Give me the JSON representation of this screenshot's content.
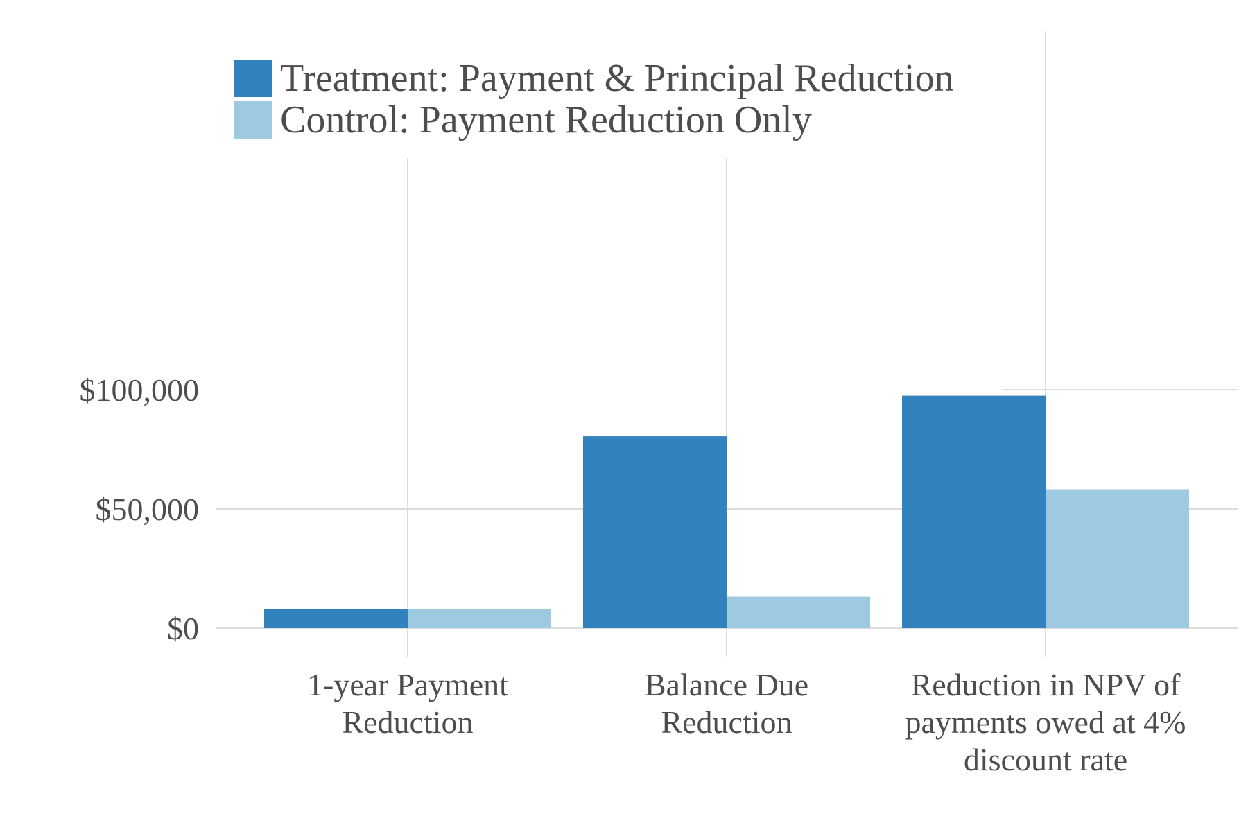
{
  "chart_data": {
    "type": "bar",
    "title": "",
    "xlabel": "",
    "ylabel": "",
    "ylim": [
      0,
      110000
    ],
    "yticks": [
      {
        "value": 0,
        "label": "$0"
      },
      {
        "value": 50000,
        "label": "$50,000"
      },
      {
        "value": 100000,
        "label": "$100,000"
      }
    ],
    "categories": [
      [
        "1-year Payment",
        "Reduction"
      ],
      [
        "Balance Due",
        "Reduction"
      ],
      [
        "Reduction in NPV of",
        "payments owed at 4%",
        "discount rate"
      ]
    ],
    "series": [
      {
        "name": "Treatment: Payment & Principal Reduction",
        "color": "#3182bd",
        "values": [
          8000,
          80500,
          97500
        ]
      },
      {
        "name": "Control: Payment Reduction Only",
        "color": "#9ecae1",
        "values": [
          8000,
          13200,
          58000
        ]
      }
    ],
    "grid": true,
    "legend_position": "top-left"
  }
}
